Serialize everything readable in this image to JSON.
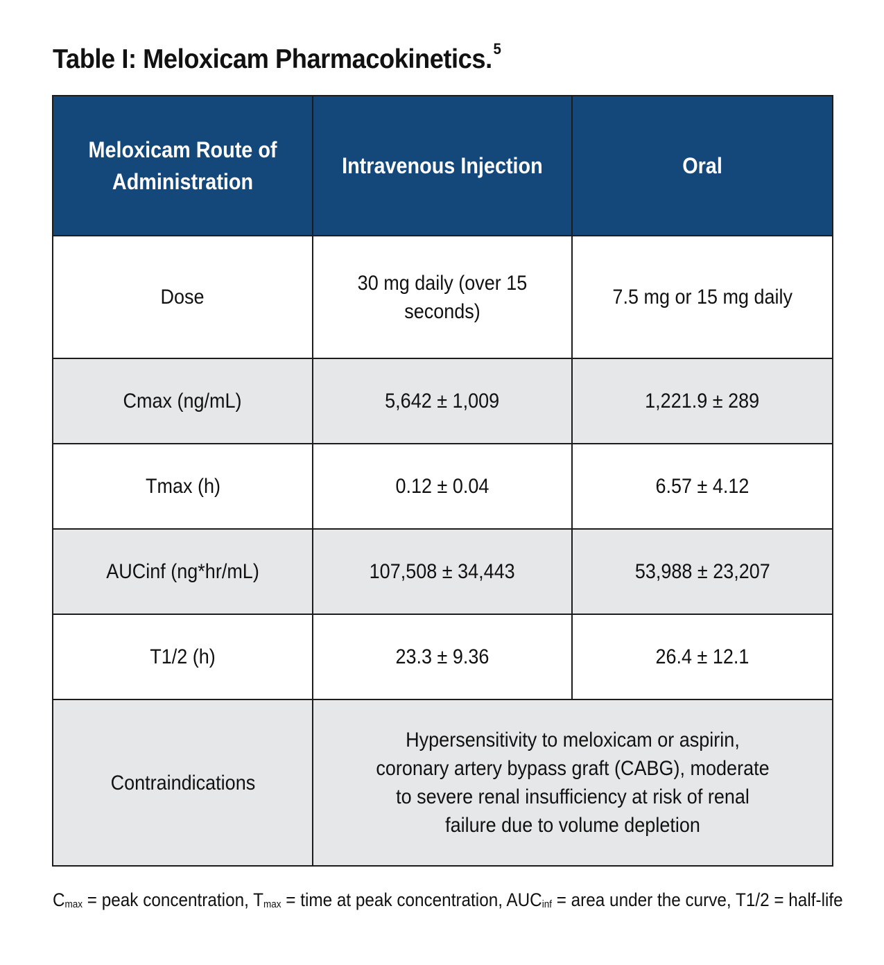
{
  "title": {
    "text": "Table I: Meloxicam Pharmacokinetics.",
    "reference": "5"
  },
  "table": {
    "headers": [
      "Meloxicam Route of Administration",
      "Intravenous Injection",
      "Oral"
    ],
    "rows": [
      {
        "label": "Dose",
        "iv": "30 mg daily (over 15 seconds)",
        "oral": "7.5 mg or 15 mg daily"
      },
      {
        "label": "Cmax (ng/mL)",
        "iv": "5,642 ± 1,009",
        "oral": "1,221.9 ± 289"
      },
      {
        "label": "Tmax (h)",
        "iv": "0.12 ± 0.04",
        "oral": "6.57 ± 4.12"
      },
      {
        "label": "AUCinf (ng*hr/mL)",
        "iv": "107,508 ± 34,443",
        "oral": "53,988 ± 23,207"
      },
      {
        "label": "T1/2 (h)",
        "iv": "23.3 ± 9.36",
        "oral": "26.4 ± 12.1"
      },
      {
        "label": "Contraindications",
        "combined": "Hypersensitivity to meloxicam or aspirin, coronary artery bypass graft (CABG), moderate to severe renal insufficiency at risk of renal failure due to volume depletion"
      }
    ]
  },
  "footnote": {
    "cmax_base": "C",
    "cmax_sub": "max",
    "cmax_def": " = peak concentration, ",
    "tmax_base": "T",
    "tmax_sub": "max",
    "tmax_def": " = time at peak concentration, ",
    "auc_base": "AUC",
    "auc_sub": "inf",
    "auc_def": " = area under the curve, ",
    "thalf_def": "T1/2 = half-life"
  },
  "colors": {
    "header_bg": "#14477a",
    "header_text": "#ffffff",
    "shaded_row_bg": "#e6e7e9",
    "border": "#1c1c1c"
  }
}
